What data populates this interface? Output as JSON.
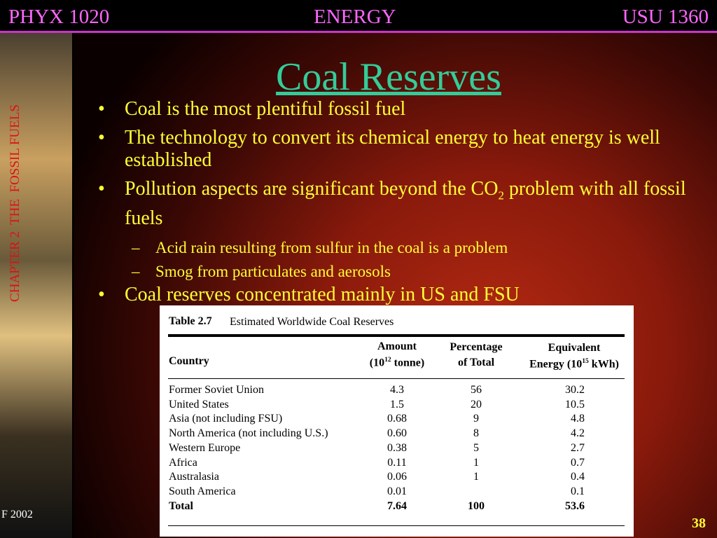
{
  "header": {
    "left": "PHYX 1020",
    "center": "ENERGY",
    "right": "USU 1360"
  },
  "sidebar": "CHAPTER 2  THE  FOSSIL FUELS",
  "title": "Coal Reserves",
  "bullets": [
    {
      "parts": [
        "Coal is the most plentiful fossil fuel"
      ]
    },
    {
      "parts": [
        "The technology to convert its chemical energy to heat energy is well established"
      ]
    },
    {
      "parts": [
        "Pollution aspects are significant beyond the CO",
        "2",
        " problem with all fossil fuels"
      ],
      "sub": [
        "Acid rain resulting from sulfur in the coal is a problem",
        "Smog from particulates and aerosols"
      ]
    },
    {
      "parts": [
        "Coal reserves concentrated mainly in US and FSU"
      ]
    }
  ],
  "table": {
    "label": "Table 2.7",
    "caption": "Estimated Worldwide Coal Reserves",
    "headers": {
      "country": "Country",
      "amount": [
        "Amount",
        "(10",
        "12",
        " tonne)"
      ],
      "percentage": [
        "Percentage",
        "of Total"
      ],
      "energy": [
        "Equivalent",
        "Energy (10",
        "15",
        " kWh)"
      ]
    },
    "rows": [
      [
        "Former Soviet Union",
        "4.3",
        "56",
        "30.2"
      ],
      [
        "United States",
        "1.5",
        "20",
        "10.5"
      ],
      [
        "Asia (not including FSU)",
        "0.68",
        "9",
        "4.8"
      ],
      [
        "North America (not including U.S.)",
        "0.60",
        "8",
        "4.2"
      ],
      [
        "Western Europe",
        "0.38",
        "5",
        "2.7"
      ],
      [
        "Africa",
        "0.11",
        "1",
        "0.7"
      ],
      [
        "Australasia",
        "0.06",
        "1",
        "0.4"
      ],
      [
        "South America",
        "0.01",
        null,
        "0.1"
      ],
      [
        "Total",
        "7.64",
        "100",
        "53.6"
      ]
    ]
  },
  "footer": {
    "left": "F 2002",
    "page": "38"
  }
}
